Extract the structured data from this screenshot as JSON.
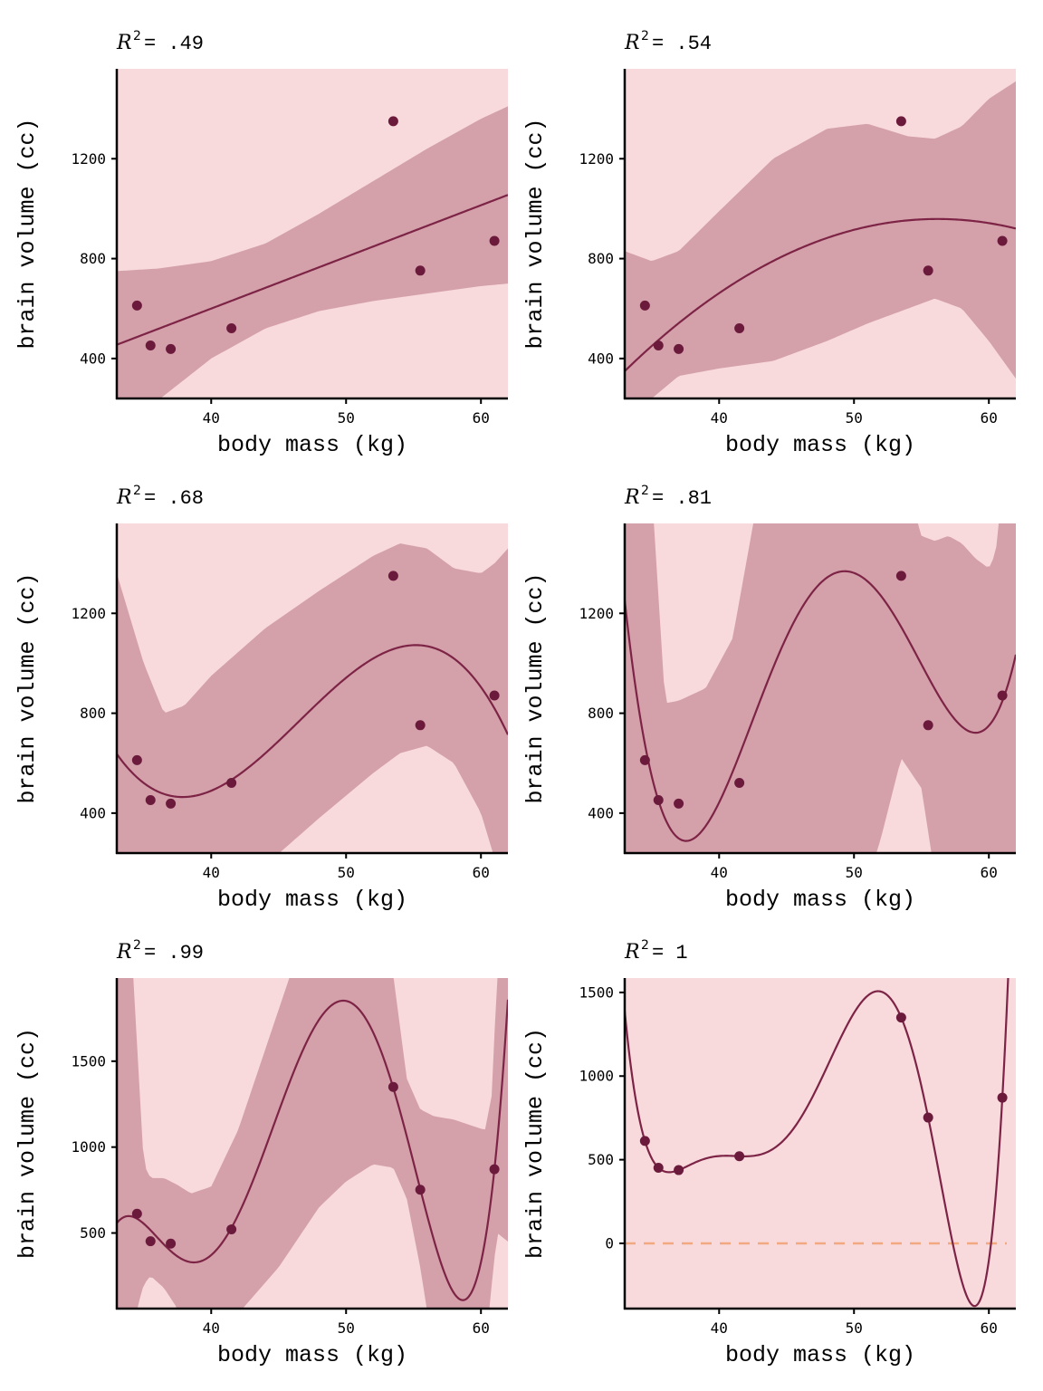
{
  "colors": {
    "background_band": "#f8dadd",
    "interval_band": "#d4a1aa",
    "fit_line": "#7d2446",
    "points": "#6b1a3c",
    "zero_line": "#f2a982",
    "axis": "#000000"
  },
  "chart_data": [
    {
      "type": "scatter",
      "title": "R² = .49",
      "title_parts": {
        "r": "R",
        "sup": "2",
        "rest": "= .49"
      },
      "polynomial_degree": 1,
      "xlabel": "body mass (kg)",
      "ylabel": "brain volume (cc)",
      "xlim": [
        33,
        62
      ],
      "ylim": [
        240,
        1560
      ],
      "xticks": [
        40,
        50,
        60
      ],
      "yticks": [
        400,
        800,
        1200
      ],
      "points": {
        "x": [
          37.0,
          35.5,
          34.5,
          41.5,
          55.5,
          61.0,
          53.5
        ],
        "y": [
          438,
          452,
          612,
          521,
          752,
          871,
          1350
        ]
      },
      "band_x": [
        33,
        36,
        40,
        44,
        48,
        52,
        56,
        60,
        62
      ],
      "band_lower": [
        120,
        230,
        400,
        520,
        590,
        630,
        660,
        690,
        700
      ],
      "band_upper": [
        750,
        760,
        790,
        860,
        980,
        1110,
        1240,
        1360,
        1410
      ],
      "zero_line": false,
      "grid": false
    },
    {
      "type": "scatter",
      "title": "R² = .54",
      "title_parts": {
        "r": "R",
        "sup": "2",
        "rest": "= .54"
      },
      "polynomial_degree": 2,
      "xlabel": "body mass (kg)",
      "ylabel": "brain volume (cc)",
      "xlim": [
        33,
        62
      ],
      "ylim": [
        240,
        1560
      ],
      "xticks": [
        40,
        50,
        60
      ],
      "yticks": [
        400,
        800,
        1200
      ],
      "points": {
        "x": [
          37.0,
          35.5,
          34.5,
          41.5,
          55.5,
          61.0,
          53.5
        ],
        "y": [
          438,
          452,
          612,
          521,
          752,
          871,
          1350
        ]
      },
      "band_x": [
        33,
        35,
        37,
        40,
        44,
        48,
        51,
        54,
        56,
        58,
        60,
        62
      ],
      "band_lower": [
        200,
        240,
        330,
        360,
        390,
        470,
        540,
        600,
        640,
        600,
        470,
        320
      ],
      "band_upper": [
        830,
        790,
        830,
        990,
        1200,
        1320,
        1340,
        1290,
        1280,
        1330,
        1440,
        1510
      ],
      "zero_line": false,
      "grid": false
    },
    {
      "type": "scatter",
      "title": "R² = .68",
      "title_parts": {
        "r": "R",
        "sup": "2",
        "rest": "= .68"
      },
      "polynomial_degree": 3,
      "xlabel": "body mass (kg)",
      "ylabel": "brain volume (cc)",
      "xlim": [
        33,
        62
      ],
      "ylim": [
        240,
        1560
      ],
      "xticks": [
        40,
        50,
        60
      ],
      "yticks": [
        400,
        800,
        1200
      ],
      "points": {
        "x": [
          37.0,
          35.5,
          34.5,
          41.5,
          55.5,
          61.0,
          53.5
        ],
        "y": [
          438,
          452,
          612,
          521,
          752,
          871,
          1350
        ]
      },
      "band_x": [
        33,
        35,
        36.5,
        38,
        40,
        44,
        48,
        52,
        54,
        56,
        58,
        60,
        61,
        62
      ],
      "band_lower": [
        -200,
        0,
        100,
        120,
        130,
        190,
        380,
        560,
        640,
        670,
        600,
        400,
        220,
        100
      ],
      "band_upper": [
        1360,
        1000,
        800,
        830,
        950,
        1140,
        1290,
        1430,
        1480,
        1460,
        1380,
        1360,
        1400,
        1460
      ],
      "zero_line": false,
      "grid": false
    },
    {
      "type": "scatter",
      "title": "R² = .81",
      "title_parts": {
        "r": "R",
        "sup": "2",
        "rest": "= .81"
      },
      "polynomial_degree": 4,
      "xlabel": "body mass (kg)",
      "ylabel": "brain volume (cc)",
      "xlim": [
        33,
        62
      ],
      "ylim": [
        240,
        1560
      ],
      "xticks": [
        40,
        50,
        60
      ],
      "yticks": [
        400,
        800,
        1200
      ],
      "points": {
        "x": [
          37.0,
          35.5,
          34.5,
          41.5,
          55.5,
          61.0,
          53.5
        ],
        "y": [
          438,
          452,
          612,
          521,
          752,
          871,
          1350
        ]
      },
      "band_x": [
        33,
        34,
        35,
        36,
        37,
        39,
        41,
        43,
        46,
        50,
        52,
        53.5,
        55,
        56,
        57,
        58,
        59,
        60,
        60.5,
        61,
        62
      ],
      "band_lower": [
        -500,
        -400,
        -300,
        -300,
        -300,
        -300,
        -200,
        -100,
        -100,
        -50,
        300,
        620,
        500,
        150,
        -100,
        -300,
        -300,
        -300,
        -300,
        -300,
        -300
      ],
      "band_upper": [
        2000,
        2000,
        1700,
        840,
        850,
        900,
        1100,
        1700,
        2000,
        2000,
        2000,
        1800,
        1510,
        1490,
        1510,
        1480,
        1420,
        1380,
        1440,
        1700,
        2000
      ],
      "zero_line": false,
      "grid": false
    },
    {
      "type": "scatter",
      "title": "R² = .99",
      "title_parts": {
        "r": "R",
        "sup": "2",
        "rest": "= .99"
      },
      "polynomial_degree": 5,
      "xlabel": "body mass (kg)",
      "ylabel": "brain volume (cc)",
      "xlim": [
        33,
        62
      ],
      "ylim": [
        60,
        1984
      ],
      "xticks": [
        40,
        50,
        60
      ],
      "yticks": [
        500,
        1000,
        1500
      ],
      "points": {
        "x": [
          37.0,
          35.5,
          34.5,
          41.5,
          55.5,
          61.0,
          53.5
        ],
        "y": [
          438,
          452,
          612,
          521,
          752,
          871,
          1350
        ]
      },
      "band_x": [
        33,
        34,
        34.5,
        35,
        35.5,
        36.5,
        37.5,
        38.5,
        40,
        42,
        45,
        48,
        50,
        52,
        53.5,
        54.5,
        55.5,
        56.5,
        58,
        59.5,
        60.3,
        60.8,
        61.2,
        62
      ],
      "band_lower": [
        -400,
        -200,
        60,
        200,
        250,
        180,
        60,
        -200,
        -200,
        30,
        300,
        650,
        800,
        900,
        880,
        700,
        300,
        -200,
        -400,
        -400,
        -200,
        200,
        500,
        450
      ],
      "band_upper": [
        2600,
        2300,
        1600,
        900,
        820,
        820,
        780,
        730,
        770,
        1100,
        1800,
        2500,
        2500,
        2400,
        2000,
        1400,
        1220,
        1180,
        1160,
        1120,
        1100,
        1300,
        2000,
        2600
      ],
      "zero_line": false,
      "grid": false
    },
    {
      "type": "scatter",
      "title": "R² = 1",
      "title_parts": {
        "r": "R",
        "sup": "2",
        "rest": "= 1"
      },
      "polynomial_degree": 6,
      "xlabel": "body mass (kg)",
      "ylabel": "brain volume (cc)",
      "xlim": [
        33,
        62
      ],
      "ylim": [
        -390,
        1586
      ],
      "xticks": [
        40,
        50,
        60
      ],
      "yticks": [
        0,
        500,
        1000,
        1500
      ],
      "points": {
        "x": [
          37.0,
          35.5,
          34.5,
          41.5,
          55.5,
          61.0,
          53.5
        ],
        "y": [
          438,
          452,
          612,
          521,
          752,
          871,
          1350
        ]
      },
      "band_x": [],
      "band_lower": [],
      "band_upper": [],
      "zero_line": true,
      "grid": false
    }
  ]
}
